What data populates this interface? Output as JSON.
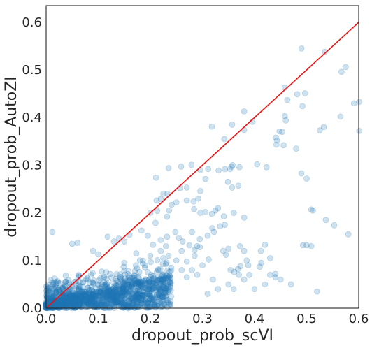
{
  "chart_data": {
    "type": "scatter",
    "title": "",
    "xlabel": "dropout_prob_scVI",
    "ylabel": "dropout_prob_AutoZI",
    "xlim": [
      0.0,
      0.6
    ],
    "ylim": [
      0.0,
      0.635
    ],
    "xticks": [
      "0.0",
      "0.1",
      "0.2",
      "0.3",
      "0.4",
      "0.5",
      "0.6"
    ],
    "yticks": [
      "0.0",
      "0.1",
      "0.2",
      "0.3",
      "0.4",
      "0.5",
      "0.6"
    ],
    "grid": false,
    "point_color": "#1f77b4",
    "point_alpha": 0.22,
    "reference_line": {
      "label": "y = x",
      "color": "#ee1111",
      "x": [
        0.0,
        0.6
      ],
      "y": [
        0.0,
        0.6
      ]
    },
    "points": [
      [
        0.49,
        0.545
      ],
      [
        0.535,
        0.538
      ],
      [
        0.575,
        0.506
      ],
      [
        0.567,
        0.496
      ],
      [
        0.591,
        0.43
      ],
      [
        0.601,
        0.433
      ],
      [
        0.601,
        0.372
      ],
      [
        0.525,
        0.373
      ],
      [
        0.533,
        0.38
      ],
      [
        0.565,
        0.402
      ],
      [
        0.458,
        0.463
      ],
      [
        0.482,
        0.449
      ],
      [
        0.497,
        0.451
      ],
      [
        0.492,
        0.424
      ],
      [
        0.463,
        0.437
      ],
      [
        0.458,
        0.403
      ],
      [
        0.46,
        0.394
      ],
      [
        0.448,
        0.371
      ],
      [
        0.453,
        0.37
      ],
      [
        0.441,
        0.358
      ],
      [
        0.443,
        0.352
      ],
      [
        0.442,
        0.343
      ],
      [
        0.456,
        0.342
      ],
      [
        0.48,
        0.335
      ],
      [
        0.396,
        0.391
      ],
      [
        0.38,
        0.374
      ],
      [
        0.38,
        0.413
      ],
      [
        0.357,
        0.385
      ],
      [
        0.318,
        0.381
      ],
      [
        0.342,
        0.355
      ],
      [
        0.405,
        0.302
      ],
      [
        0.423,
        0.296
      ],
      [
        0.371,
        0.296
      ],
      [
        0.358,
        0.3
      ],
      [
        0.356,
        0.297
      ],
      [
        0.353,
        0.292
      ],
      [
        0.343,
        0.292
      ],
      [
        0.331,
        0.289
      ],
      [
        0.311,
        0.292
      ],
      [
        0.306,
        0.271
      ],
      [
        0.296,
        0.29
      ],
      [
        0.279,
        0.301
      ],
      [
        0.259,
        0.297
      ],
      [
        0.235,
        0.294
      ],
      [
        0.257,
        0.252
      ],
      [
        0.27,
        0.253
      ],
      [
        0.296,
        0.246
      ],
      [
        0.357,
        0.253
      ],
      [
        0.369,
        0.257
      ],
      [
        0.349,
        0.265
      ],
      [
        0.211,
        0.274
      ],
      [
        0.225,
        0.24
      ],
      [
        0.233,
        0.24
      ],
      [
        0.22,
        0.229
      ],
      [
        0.212,
        0.226
      ],
      [
        0.241,
        0.217
      ],
      [
        0.213,
        0.204
      ],
      [
        0.2,
        0.2
      ],
      [
        0.21,
        0.179
      ],
      [
        0.232,
        0.192
      ],
      [
        0.236,
        0.205
      ],
      [
        0.25,
        0.222
      ],
      [
        0.27,
        0.226
      ],
      [
        0.283,
        0.224
      ],
      [
        0.292,
        0.23
      ],
      [
        0.284,
        0.208
      ],
      [
        0.296,
        0.2
      ],
      [
        0.306,
        0.202
      ],
      [
        0.318,
        0.198
      ],
      [
        0.341,
        0.193
      ],
      [
        0.325,
        0.205
      ],
      [
        0.33,
        0.21
      ],
      [
        0.36,
        0.2
      ],
      [
        0.38,
        0.19
      ],
      [
        0.343,
        0.175
      ],
      [
        0.334,
        0.172
      ],
      [
        0.319,
        0.168
      ],
      [
        0.31,
        0.152
      ],
      [
        0.295,
        0.145
      ],
      [
        0.29,
        0.13
      ],
      [
        0.285,
        0.122
      ],
      [
        0.275,
        0.132
      ],
      [
        0.262,
        0.14
      ],
      [
        0.255,
        0.147
      ],
      [
        0.248,
        0.16
      ],
      [
        0.232,
        0.15
      ],
      [
        0.22,
        0.143
      ],
      [
        0.205,
        0.133
      ],
      [
        0.195,
        0.152
      ],
      [
        0.183,
        0.163
      ],
      [
        0.16,
        0.154
      ],
      [
        0.15,
        0.14
      ],
      [
        0.14,
        0.146
      ],
      [
        0.13,
        0.14
      ],
      [
        0.118,
        0.15
      ],
      [
        0.1,
        0.113
      ],
      [
        0.09,
        0.12
      ],
      [
        0.06,
        0.137
      ],
      [
        0.05,
        0.135
      ],
      [
        0.012,
        0.16
      ],
      [
        0.49,
        0.283
      ],
      [
        0.5,
        0.272
      ],
      [
        0.509,
        0.207
      ],
      [
        0.512,
        0.205
      ],
      [
        0.537,
        0.185
      ],
      [
        0.58,
        0.155
      ],
      [
        0.553,
        0.174
      ],
      [
        0.5,
        0.132
      ],
      [
        0.493,
        0.132
      ],
      [
        0.509,
        0.13
      ],
      [
        0.42,
        0.133
      ],
      [
        0.412,
        0.12
      ],
      [
        0.43,
        0.105
      ],
      [
        0.413,
        0.095
      ],
      [
        0.41,
        0.087
      ],
      [
        0.388,
        0.09
      ],
      [
        0.373,
        0.088
      ],
      [
        0.368,
        0.082
      ],
      [
        0.361,
        0.076
      ],
      [
        0.354,
        0.08
      ],
      [
        0.345,
        0.112
      ],
      [
        0.34,
        0.12
      ],
      [
        0.35,
        0.125
      ],
      [
        0.372,
        0.13
      ],
      [
        0.38,
        0.12
      ],
      [
        0.385,
        0.1
      ],
      [
        0.39,
        0.07
      ],
      [
        0.38,
        0.06
      ],
      [
        0.37,
        0.07
      ],
      [
        0.43,
        0.07
      ],
      [
        0.44,
        0.072
      ],
      [
        0.44,
        0.065
      ],
      [
        0.47,
        0.05
      ],
      [
        0.52,
        0.035
      ],
      [
        0.27,
        0.065
      ],
      [
        0.28,
        0.08
      ],
      [
        0.29,
        0.07
      ],
      [
        0.3,
        0.09
      ],
      [
        0.312,
        0.102
      ],
      [
        0.27,
        0.098
      ],
      [
        0.25,
        0.1
      ],
      [
        0.235,
        0.11
      ],
      [
        0.225,
        0.105
      ],
      [
        0.22,
        0.12
      ],
      [
        0.15,
        0.095
      ],
      [
        0.18,
        0.1
      ],
      [
        0.19,
        0.09
      ],
      [
        0.173,
        0.115
      ],
      [
        0.2,
        0.11
      ],
      [
        0.26,
        0.08
      ],
      [
        0.24,
        0.085
      ],
      [
        0.33,
        0.04
      ],
      [
        0.35,
        0.05
      ],
      [
        0.32,
        0.06
      ],
      [
        0.31,
        0.03
      ],
      [
        0.36,
        0.04
      ],
      [
        0.4,
        0.04
      ],
      [
        0.42,
        0.05
      ],
      [
        0.45,
        0.06
      ],
      [
        0.295,
        0.128
      ],
      [
        0.285,
        0.11
      ],
      [
        0.322,
        0.16
      ],
      [
        0.28,
        0.16
      ],
      [
        0.23,
        0.13
      ],
      [
        0.26,
        0.12
      ]
    ]
  }
}
